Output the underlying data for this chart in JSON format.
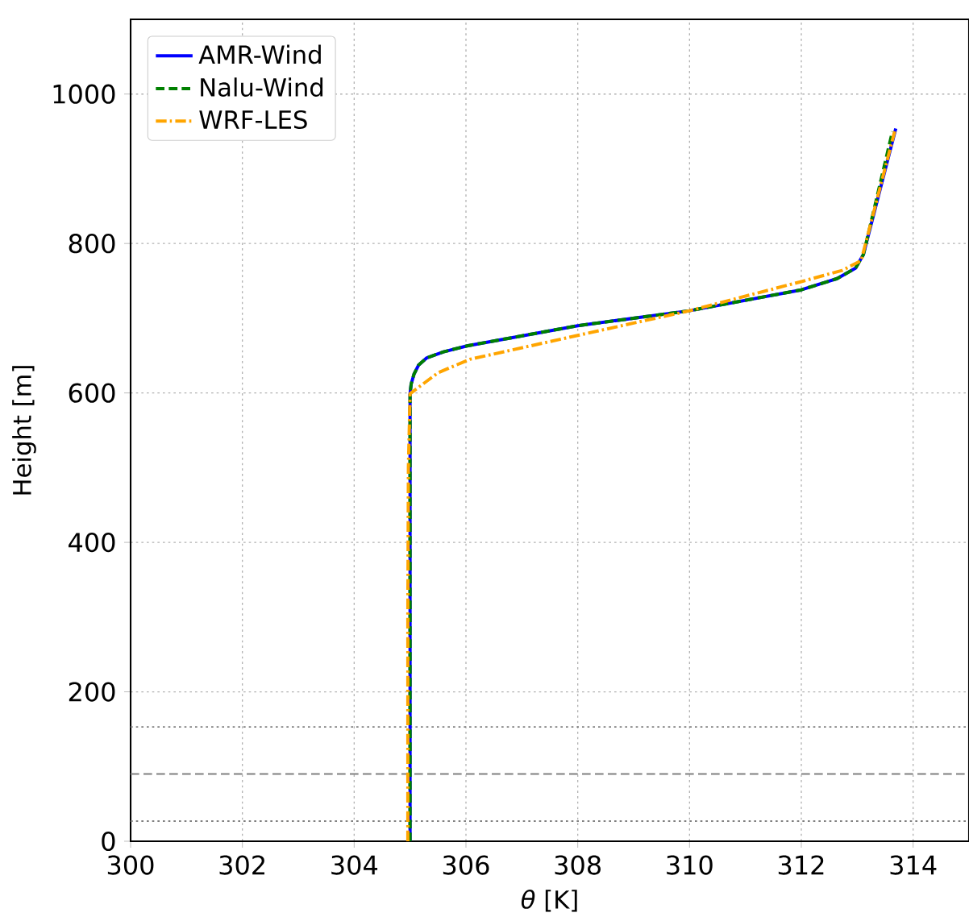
{
  "chart_data": {
    "type": "line",
    "xlabel": "*θ* [K]",
    "ylabel": "Height [m]",
    "xlim": [
      300,
      315
    ],
    "ylim": [
      0,
      1100
    ],
    "xticks": [
      300,
      302,
      304,
      306,
      308,
      310,
      312,
      314
    ],
    "yticks": [
      0,
      200,
      400,
      600,
      800,
      1000
    ],
    "grid": true,
    "legend": "top left",
    "marker": "none",
    "series": [
      {
        "name": "AMR-Wind",
        "color": "#0000ff",
        "line_style": "solid",
        "x": [
          305.0,
          305.0,
          305.02,
          305.07,
          305.15,
          305.3,
          305.6,
          306.02,
          308.0,
          310.0,
          312.0,
          312.64,
          312.97,
          313.11,
          313.69
        ],
        "values": [
          0,
          599,
          612,
          625,
          637,
          647,
          655,
          663,
          690,
          710,
          738,
          753,
          767,
          785,
          954
        ]
      },
      {
        "name": "Nalu-Wind",
        "color": "#008000",
        "line_style": "dashed",
        "x": [
          305.0,
          305.0,
          305.02,
          305.07,
          305.15,
          305.3,
          305.6,
          306.02,
          308.0,
          310.0,
          312.0,
          312.64,
          312.97,
          313.11,
          313.63
        ],
        "values": [
          0,
          599,
          612,
          625,
          637,
          647,
          655,
          663,
          690,
          710,
          738,
          753,
          767,
          785,
          950
        ]
      },
      {
        "name": "WRF-LES",
        "color": "#ffa500",
        "line_style": "dashdot",
        "x": [
          304.96,
          304.96,
          304.97,
          305.0,
          305.5,
          306.07,
          308.0,
          310.0,
          312.0,
          312.73,
          313.07,
          313.67
        ],
        "values": [
          0,
          300,
          500,
          599,
          627,
          645,
          677,
          710,
          749,
          764,
          777,
          950
        ]
      }
    ],
    "ref_lines": [
      {
        "axis": "y",
        "value": 27,
        "color": "#808080",
        "line_style": "dotted"
      },
      {
        "axis": "y",
        "value": 90,
        "color": "#808080",
        "line_style": "dashed"
      },
      {
        "axis": "y",
        "value": 153,
        "color": "#808080",
        "line_style": "dotted"
      }
    ]
  }
}
